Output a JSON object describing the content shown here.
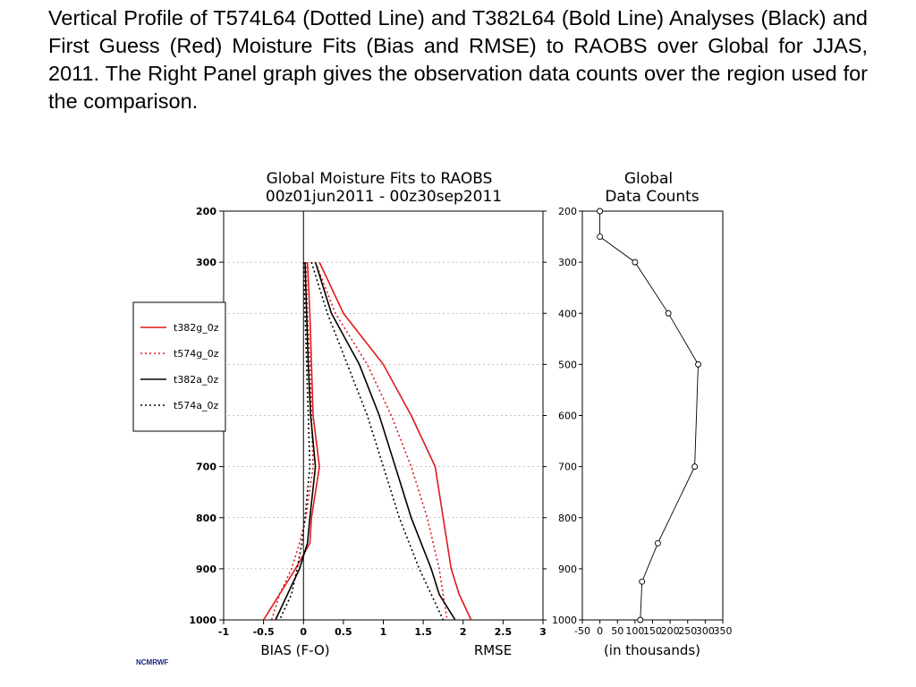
{
  "caption": "Vertical Profile of T574L64 (Dotted Line) and T382L64 (Bold Line) Analyses (Black) and First Guess (Red) Moisture Fits (Bias and RMSE) to RAOBS over Global for JJAS, 2011. The Right Panel graph gives the observation data counts over the region used for the comparison.",
  "credit": "NCMRWF",
  "colors": {
    "red": "#e0191c",
    "black": "#000000"
  },
  "chart_data": [
    {
      "type": "line",
      "title": "Global Moisture Fits to RAOBS",
      "subtitle": "00z01jun2011 - 00z30sep2011",
      "xlabel_left": "BIAS (F-O)",
      "xlabel_right": "RMSE",
      "xlim": [
        -1,
        3
      ],
      "xticks": [
        "-1",
        "-0.5",
        "0",
        "0.5",
        "1",
        "1.5",
        "2",
        "2.5",
        "3"
      ],
      "ylim": [
        200,
        1000
      ],
      "yticks": [
        "200",
        "300",
        "400",
        "500",
        "600",
        "700",
        "800",
        "900",
        "1000"
      ],
      "legend": [
        "t382g_0z",
        "t574g_0z",
        "t382a_0z",
        "t574a_0z"
      ],
      "series": [
        {
          "name": "t382g_0z",
          "color": "red",
          "dash": "solid",
          "metric": "bias",
          "points": [
            [
              0.05,
              300
            ],
            [
              0.08,
              400
            ],
            [
              0.1,
              500
            ],
            [
              0.12,
              600
            ],
            [
              0.2,
              700
            ],
            [
              0.1,
              800
            ],
            [
              0.08,
              850
            ],
            [
              -0.1,
              900
            ],
            [
              -0.3,
              950
            ],
            [
              -0.5,
              1000
            ]
          ]
        },
        {
          "name": "t574g_0z",
          "color": "red",
          "dash": "dotted",
          "metric": "bias",
          "points": [
            [
              0.03,
              300
            ],
            [
              0.05,
              400
            ],
            [
              0.08,
              500
            ],
            [
              0.1,
              600
            ],
            [
              0.12,
              700
            ],
            [
              0.03,
              800
            ],
            [
              -0.05,
              850
            ],
            [
              -0.15,
              900
            ],
            [
              -0.3,
              950
            ],
            [
              -0.4,
              1000
            ]
          ]
        },
        {
          "name": "t382a_0z",
          "color": "black",
          "dash": "solid",
          "metric": "bias",
          "points": [
            [
              0.02,
              300
            ],
            [
              0.04,
              400
            ],
            [
              0.06,
              500
            ],
            [
              0.09,
              600
            ],
            [
              0.15,
              700
            ],
            [
              0.08,
              800
            ],
            [
              0.05,
              850
            ],
            [
              -0.05,
              900
            ],
            [
              -0.2,
              950
            ],
            [
              -0.35,
              1000
            ]
          ]
        },
        {
          "name": "t574a_0z",
          "color": "black",
          "dash": "dotted",
          "metric": "bias",
          "points": [
            [
              0.0,
              300
            ],
            [
              0.02,
              400
            ],
            [
              0.04,
              500
            ],
            [
              0.06,
              600
            ],
            [
              0.08,
              700
            ],
            [
              0.02,
              800
            ],
            [
              -0.02,
              850
            ],
            [
              -0.08,
              900
            ],
            [
              -0.15,
              950
            ],
            [
              -0.3,
              1000
            ]
          ]
        },
        {
          "name": "t382g_0z",
          "color": "red",
          "dash": "solid",
          "metric": "rmse",
          "points": [
            [
              0.2,
              300
            ],
            [
              0.5,
              400
            ],
            [
              1.0,
              500
            ],
            [
              1.35,
              600
            ],
            [
              1.65,
              700
            ],
            [
              1.75,
              800
            ],
            [
              1.85,
              900
            ],
            [
              1.95,
              950
            ],
            [
              2.1,
              1000
            ]
          ]
        },
        {
          "name": "t574g_0z",
          "color": "red",
          "dash": "dotted",
          "metric": "rmse",
          "points": [
            [
              0.15,
              300
            ],
            [
              0.4,
              400
            ],
            [
              0.8,
              500
            ],
            [
              1.1,
              600
            ],
            [
              1.35,
              700
            ],
            [
              1.55,
              800
            ],
            [
              1.7,
              900
            ],
            [
              1.75,
              950
            ],
            [
              1.8,
              1000
            ]
          ]
        },
        {
          "name": "t382a_0z",
          "color": "black",
          "dash": "solid",
          "metric": "rmse",
          "points": [
            [
              0.15,
              300
            ],
            [
              0.35,
              400
            ],
            [
              0.7,
              500
            ],
            [
              0.95,
              600
            ],
            [
              1.15,
              700
            ],
            [
              1.35,
              800
            ],
            [
              1.6,
              900
            ],
            [
              1.7,
              950
            ],
            [
              1.9,
              1000
            ]
          ]
        },
        {
          "name": "t574a_0z",
          "color": "black",
          "dash": "dotted",
          "metric": "rmse",
          "points": [
            [
              0.1,
              300
            ],
            [
              0.3,
              400
            ],
            [
              0.55,
              500
            ],
            [
              0.8,
              600
            ],
            [
              1.0,
              700
            ],
            [
              1.2,
              800
            ],
            [
              1.45,
              900
            ],
            [
              1.6,
              950
            ],
            [
              1.75,
              1000
            ]
          ]
        }
      ]
    },
    {
      "type": "line",
      "title": "Global",
      "subtitle": "Data Counts",
      "xlabel": "(in thousands)",
      "xlim": [
        -50,
        350
      ],
      "xticks": [
        "-50",
        "0",
        "50",
        "100",
        "150",
        "200",
        "250",
        "300",
        "350"
      ],
      "ylim": [
        200,
        1000
      ],
      "yticks": [
        "200",
        "300",
        "400",
        "500",
        "600",
        "700",
        "800",
        "900",
        "1000"
      ],
      "series": [
        {
          "name": "",
          "color": "black",
          "dash": "solid",
          "markers": true,
          "points": [
            [
              0,
              200
            ],
            [
              0,
              250
            ],
            [
              100,
              300
            ],
            [
              195,
              400
            ],
            [
              280,
              500
            ],
            [
              270,
              700
            ],
            [
              165,
              850
            ],
            [
              120,
              925
            ],
            [
              115,
              1000
            ]
          ]
        }
      ]
    }
  ]
}
